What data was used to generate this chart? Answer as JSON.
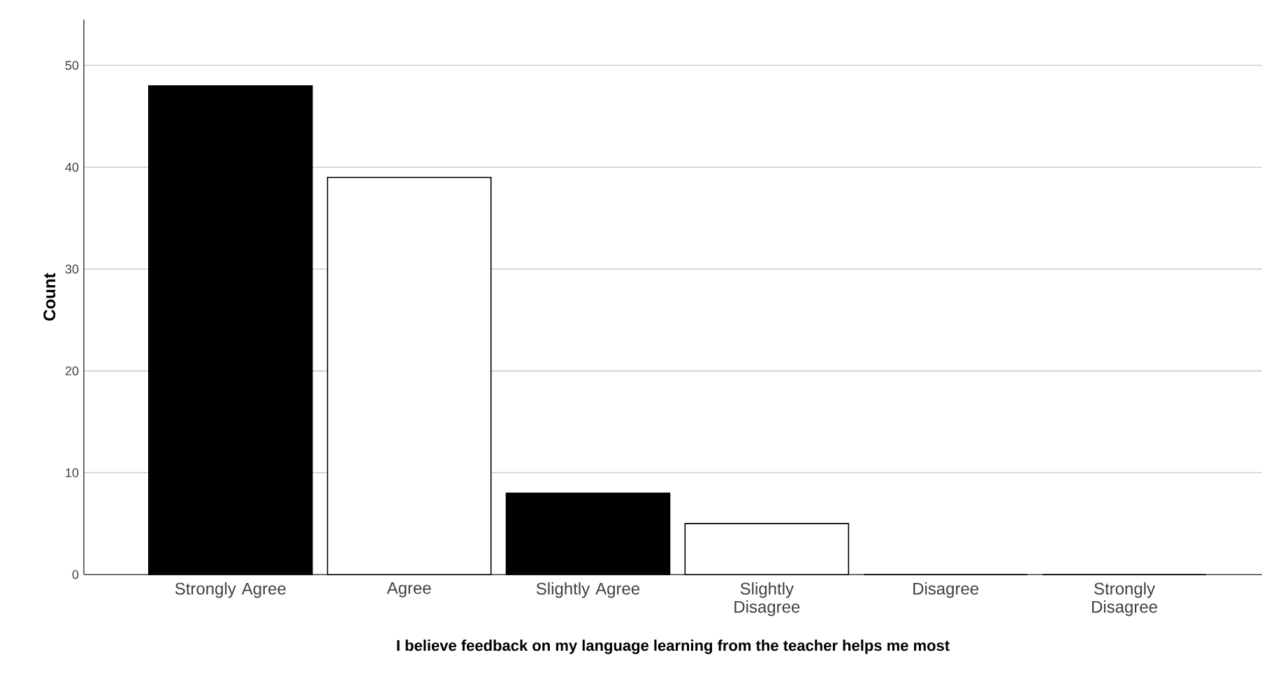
{
  "chart_data": {
    "type": "bar",
    "xlabel": "I believe feedback on my language learning from the teacher helps me most",
    "ylabel": "Count",
    "categories": [
      "Strongly Agree",
      "Agree",
      "Slightly Agree",
      "Slightly Disagree",
      "Disagree",
      "Strongly Disagree"
    ],
    "values": [
      48,
      39,
      8,
      5,
      0,
      0
    ],
    "colors": [
      "#000000",
      "#ffffff",
      "#000000",
      "#ffffff",
      "#000000",
      "#ffffff"
    ],
    "ylim": [
      0,
      54.5
    ],
    "yticks": [
      0,
      10,
      20,
      30,
      40,
      50
    ],
    "grid": "y"
  }
}
